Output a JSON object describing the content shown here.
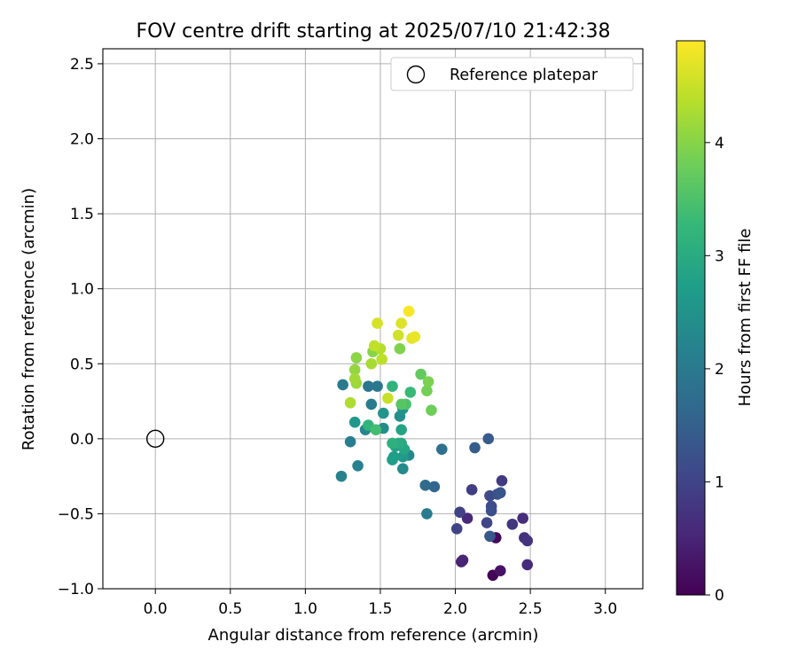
{
  "chart_data": {
    "type": "scatter",
    "title": "FOV centre drift starting at 2025/07/10 21:42:38",
    "xlabel": "Angular distance from reference (arcmin)",
    "ylabel": "Rotation from reference (arcmin)",
    "xlim": [
      -0.35,
      3.25
    ],
    "ylim": [
      -1.0,
      2.6
    ],
    "xticks": [
      0.0,
      0.5,
      1.0,
      1.5,
      2.0,
      2.5,
      3.0
    ],
    "xtick_labels": [
      "0.0",
      "0.5",
      "1.0",
      "1.5",
      "2.0",
      "2.5",
      "3.0"
    ],
    "yticks": [
      -1.0,
      -0.5,
      0.0,
      0.5,
      1.0,
      1.5,
      2.0,
      2.5
    ],
    "ytick_labels": [
      "−1.0",
      "−0.5",
      "0.0",
      "0.5",
      "1.0",
      "1.5",
      "2.0",
      "2.5"
    ],
    "grid": true,
    "legend": {
      "position": "upper-right",
      "entries": [
        "Reference platepar"
      ]
    },
    "reference_point": {
      "name": "Reference platepar",
      "x": 0.0,
      "y": 0.0
    },
    "colorbar": {
      "label": "Hours from first FF file",
      "colormap": "viridis",
      "range": [
        0,
        4.9
      ],
      "ticks": [
        0,
        1,
        2,
        3,
        4
      ],
      "tick_labels": [
        "0",
        "1",
        "2",
        "3",
        "4"
      ],
      "stops": [
        "#440154",
        "#482878",
        "#3e4989",
        "#31688e",
        "#26828e",
        "#1f9e89",
        "#35b779",
        "#6ece58",
        "#b5de2b",
        "#fde725"
      ]
    },
    "points": [
      {
        "x": 2.25,
        "y": -0.91,
        "t": 0.05
      },
      {
        "x": 2.27,
        "y": -0.66,
        "t": 0.1
      },
      {
        "x": 2.3,
        "y": -0.88,
        "t": 0.25
      },
      {
        "x": 2.04,
        "y": -0.82,
        "t": 0.45
      },
      {
        "x": 2.05,
        "y": -0.81,
        "t": 0.5
      },
      {
        "x": 2.08,
        "y": -0.53,
        "t": 0.55
      },
      {
        "x": 2.48,
        "y": -0.84,
        "t": 0.6
      },
      {
        "x": 2.45,
        "y": -0.53,
        "t": 0.65
      },
      {
        "x": 2.46,
        "y": -0.66,
        "t": 0.7
      },
      {
        "x": 2.48,
        "y": -0.68,
        "t": 0.75
      },
      {
        "x": 2.38,
        "y": -0.57,
        "t": 0.8
      },
      {
        "x": 2.31,
        "y": -0.28,
        "t": 0.85
      },
      {
        "x": 2.11,
        "y": -0.34,
        "t": 0.9
      },
      {
        "x": 2.03,
        "y": -0.49,
        "t": 0.95
      },
      {
        "x": 2.01,
        "y": -0.6,
        "t": 1.0
      },
      {
        "x": 2.21,
        "y": -0.56,
        "t": 1.05
      },
      {
        "x": 2.23,
        "y": -0.38,
        "t": 1.1
      },
      {
        "x": 2.24,
        "y": -0.45,
        "t": 1.15
      },
      {
        "x": 2.24,
        "y": -0.48,
        "t": 1.2
      },
      {
        "x": 2.28,
        "y": -0.37,
        "t": 1.25
      },
      {
        "x": 2.3,
        "y": -0.36,
        "t": 1.3
      },
      {
        "x": 2.23,
        "y": -0.65,
        "t": 1.35
      },
      {
        "x": 2.22,
        "y": 0.0,
        "t": 1.4
      },
      {
        "x": 2.13,
        "y": -0.06,
        "t": 1.45
      },
      {
        "x": 1.86,
        "y": -0.32,
        "t": 1.6
      },
      {
        "x": 1.8,
        "y": -0.31,
        "t": 1.7
      },
      {
        "x": 1.91,
        "y": -0.07,
        "t": 1.8
      },
      {
        "x": 1.42,
        "y": 0.35,
        "t": 1.9
      },
      {
        "x": 1.48,
        "y": 0.35,
        "t": 1.95
      },
      {
        "x": 1.25,
        "y": 0.36,
        "t": 2.0
      },
      {
        "x": 1.44,
        "y": 0.23,
        "t": 2.05
      },
      {
        "x": 1.81,
        "y": -0.5,
        "t": 2.05
      },
      {
        "x": 1.3,
        "y": -0.02,
        "t": 2.1
      },
      {
        "x": 1.35,
        "y": -0.18,
        "t": 2.15
      },
      {
        "x": 1.24,
        "y": -0.25,
        "t": 2.2
      },
      {
        "x": 1.4,
        "y": 0.06,
        "t": 2.25
      },
      {
        "x": 1.69,
        "y": -0.11,
        "t": 2.3
      },
      {
        "x": 1.65,
        "y": -0.2,
        "t": 2.35
      },
      {
        "x": 1.52,
        "y": 0.07,
        "t": 2.4
      },
      {
        "x": 1.63,
        "y": 0.15,
        "t": 2.45
      },
      {
        "x": 1.65,
        "y": 0.2,
        "t": 2.5
      },
      {
        "x": 1.52,
        "y": 0.17,
        "t": 2.55
      },
      {
        "x": 1.33,
        "y": 0.11,
        "t": 2.6
      },
      {
        "x": 1.65,
        "y": -0.12,
        "t": 2.65
      },
      {
        "x": 1.58,
        "y": -0.14,
        "t": 2.7
      },
      {
        "x": 1.59,
        "y": -0.12,
        "t": 2.75
      },
      {
        "x": 1.6,
        "y": -0.05,
        "t": 2.8
      },
      {
        "x": 1.64,
        "y": 0.06,
        "t": 2.85
      },
      {
        "x": 1.66,
        "y": -0.07,
        "t": 2.9
      },
      {
        "x": 1.64,
        "y": -0.03,
        "t": 2.95
      },
      {
        "x": 1.62,
        "y": -0.03,
        "t": 3.0
      },
      {
        "x": 1.58,
        "y": -0.03,
        "t": 3.1
      },
      {
        "x": 1.58,
        "y": 0.35,
        "t": 3.15
      },
      {
        "x": 1.42,
        "y": 0.09,
        "t": 3.2
      },
      {
        "x": 1.7,
        "y": 0.31,
        "t": 3.3
      },
      {
        "x": 1.47,
        "y": 0.06,
        "t": 3.4
      },
      {
        "x": 1.67,
        "y": 0.23,
        "t": 3.5
      },
      {
        "x": 1.64,
        "y": 0.23,
        "t": 3.6
      },
      {
        "x": 1.77,
        "y": 0.43,
        "t": 3.7
      },
      {
        "x": 1.84,
        "y": 0.19,
        "t": 3.8
      },
      {
        "x": 1.81,
        "y": 0.32,
        "t": 3.85
      },
      {
        "x": 1.82,
        "y": 0.38,
        "t": 3.9
      },
      {
        "x": 1.63,
        "y": 0.6,
        "t": 3.95
      },
      {
        "x": 1.45,
        "y": 0.58,
        "t": 4.0
      },
      {
        "x": 1.34,
        "y": 0.54,
        "t": 4.05
      },
      {
        "x": 1.33,
        "y": 0.46,
        "t": 4.1
      },
      {
        "x": 1.34,
        "y": 0.37,
        "t": 4.15
      },
      {
        "x": 1.33,
        "y": 0.4,
        "t": 4.2
      },
      {
        "x": 1.44,
        "y": 0.5,
        "t": 4.25
      },
      {
        "x": 1.3,
        "y": 0.24,
        "t": 4.3
      },
      {
        "x": 1.5,
        "y": 0.6,
        "t": 4.35
      },
      {
        "x": 1.51,
        "y": 0.53,
        "t": 4.4
      },
      {
        "x": 1.46,
        "y": 0.62,
        "t": 4.45
      },
      {
        "x": 1.55,
        "y": 0.27,
        "t": 4.5
      },
      {
        "x": 1.62,
        "y": 0.69,
        "t": 4.55
      },
      {
        "x": 1.48,
        "y": 0.77,
        "t": 4.6
      },
      {
        "x": 1.64,
        "y": 0.77,
        "t": 4.65
      },
      {
        "x": 1.71,
        "y": 0.67,
        "t": 4.7
      },
      {
        "x": 1.73,
        "y": 0.68,
        "t": 4.75
      },
      {
        "x": 1.69,
        "y": 0.85,
        "t": 4.85
      }
    ]
  }
}
